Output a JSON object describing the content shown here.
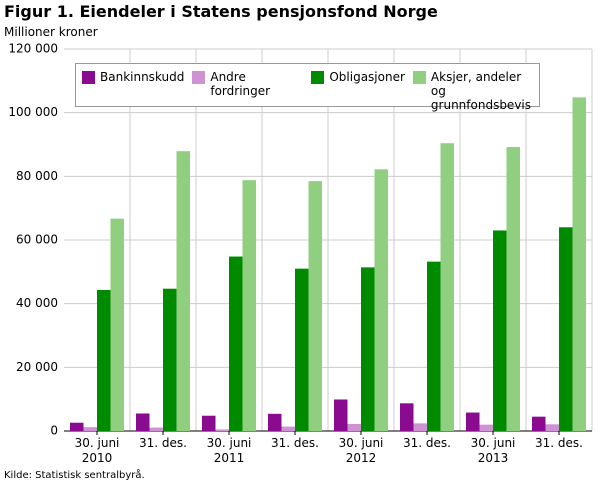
{
  "chart_data": {
    "type": "bar",
    "title": "Figur 1. Eiendeler i Statens pensjonsfond Norge",
    "y_label": "Millioner kroner",
    "source": "Kilde: Statistisk sentralbyrå.",
    "categories": [
      "30. juni 2010",
      "31. des.",
      "30. juni 2011",
      "31. des.",
      "30. juni 2012",
      "31. des.",
      "30. juni 2013",
      "31. des."
    ],
    "series": [
      {
        "name": "Bankinnskudd",
        "color": "#8a0b8f",
        "values": [
          2600,
          5500,
          4800,
          5400,
          9900,
          8700,
          5800,
          4500
        ]
      },
      {
        "name": "Andre fordringer",
        "color": "#cf93d4",
        "values": [
          1200,
          1100,
          500,
          1400,
          2200,
          2400,
          2000,
          2100
        ]
      },
      {
        "name": "Obligasjoner",
        "color": "#008a00",
        "values": [
          44300,
          44700,
          54800,
          51000,
          51400,
          53200,
          63000,
          64000
        ]
      },
      {
        "name": "Aksjer, andeler og grunnfondsbevis",
        "color": "#90cf80",
        "values": [
          66700,
          87900,
          78800,
          78500,
          82200,
          90400,
          89200,
          104800
        ]
      }
    ],
    "ylim": [
      0,
      120000
    ],
    "yticks": [
      0,
      {
        "value": 20000,
        "label": "20 000"
      },
      {
        "value": 40000,
        "label": "40 000"
      },
      {
        "value": 60000,
        "label": "60 000"
      },
      {
        "value": 80000,
        "label": "80 000"
      },
      {
        "value": 100000,
        "label": "100 000"
      },
      {
        "value": 120000,
        "label": "120 000"
      }
    ],
    "grid": true,
    "legend": "top-left"
  }
}
